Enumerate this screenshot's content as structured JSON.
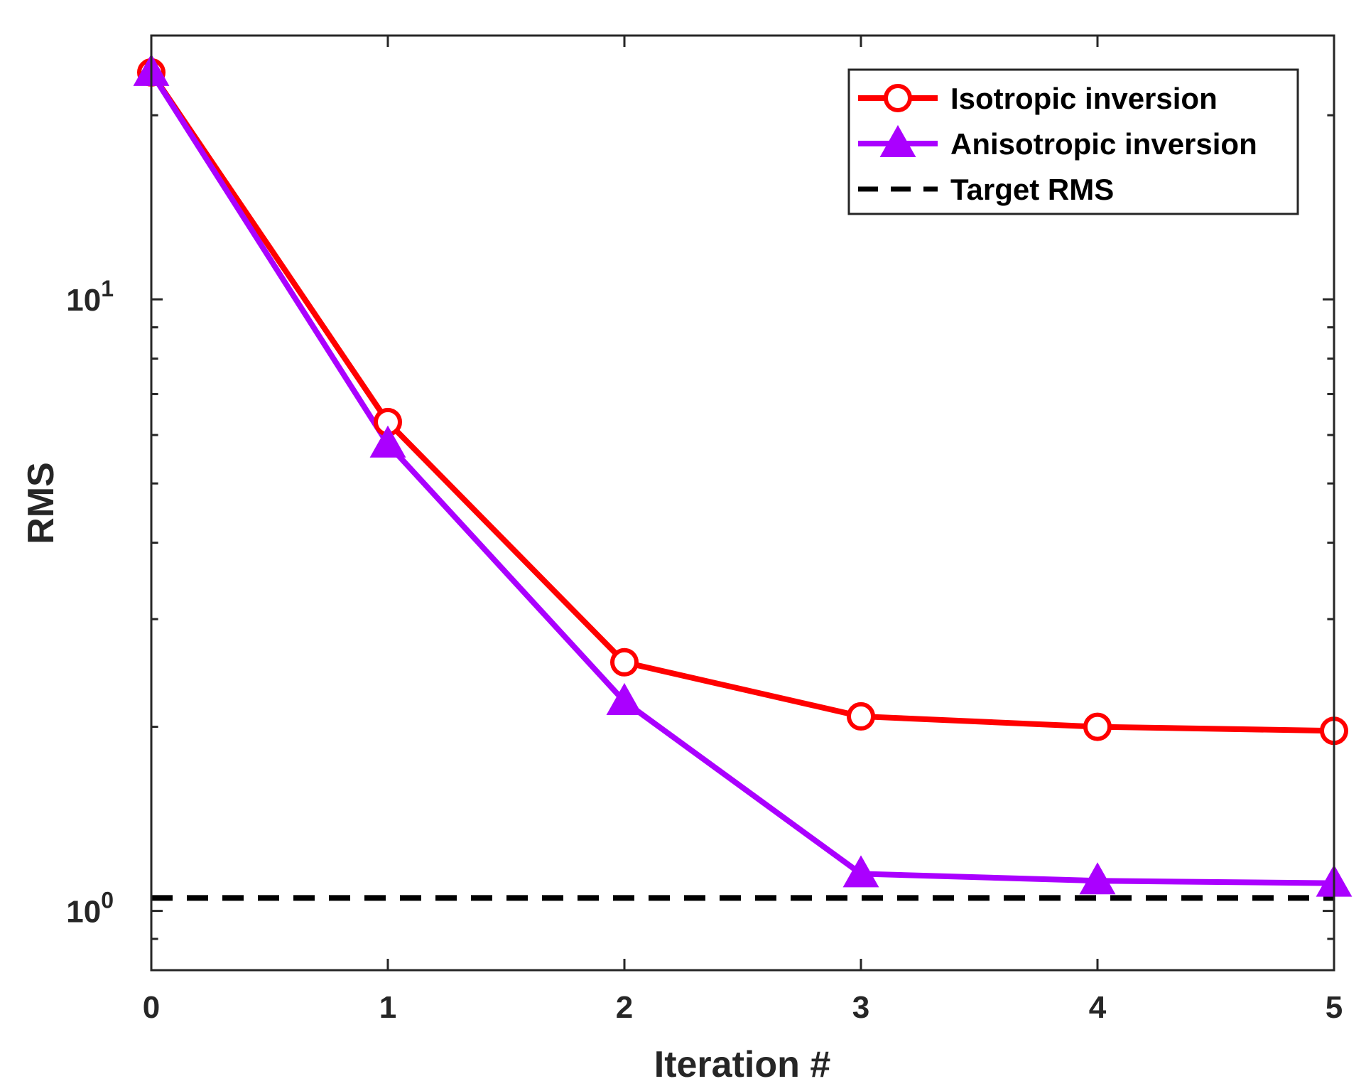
{
  "chart_data": {
    "type": "line",
    "xlabel": "Iteration #",
    "ylabel": "RMS",
    "yscale": "log",
    "xlim": [
      0,
      5
    ],
    "ylim": [
      0.8,
      27
    ],
    "x": [
      0,
      1,
      2,
      3,
      4,
      5
    ],
    "xticks": [
      "0",
      "1",
      "2",
      "3",
      "4",
      "5"
    ],
    "yticks": [
      {
        "value": 1,
        "base": "10",
        "exp": "0"
      },
      {
        "value": 10,
        "base": "10",
        "exp": "1"
      }
    ],
    "series": [
      {
        "name": "Isotropic inversion",
        "color": "#ff0000",
        "marker": "circle",
        "values": [
          23.5,
          6.3,
          2.55,
          2.08,
          2.0,
          1.97
        ]
      },
      {
        "name": "Anisotropic inversion",
        "color": "#aa00ff",
        "marker": "triangle",
        "values": [
          23.5,
          5.8,
          2.2,
          1.15,
          1.12,
          1.11
        ]
      }
    ],
    "reference_line": {
      "name": "Target RMS",
      "value": 1.05,
      "color": "#000000",
      "style": "dashed"
    },
    "legend_position": "top-right",
    "grid": false
  }
}
